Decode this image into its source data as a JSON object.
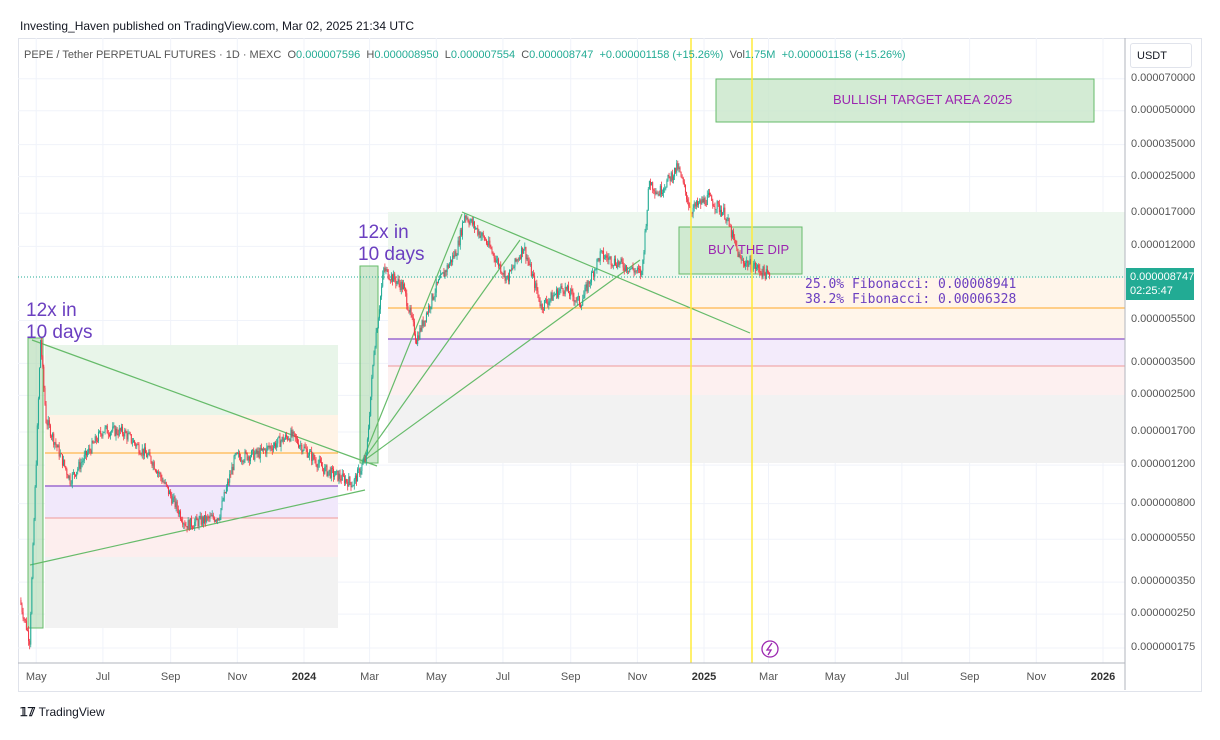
{
  "header": {
    "published": "Investing_Haven published on TradingView.com, Mar 02, 2025 21:34 UTC"
  },
  "legend": {
    "symbol": "PEPE / Tether PERPETUAL FUTURES · 1D · MEXC",
    "o_label": "O",
    "o": "0.000007596",
    "h_label": "H",
    "h": "0.000008950",
    "l_label": "L",
    "l": "0.000007554",
    "c_label": "C",
    "c": "0.000008747",
    "change": "+0.000001158 (+15.26%)",
    "vol_label": "Vol",
    "vol": "1.75M",
    "vol_change": "+0.000001158 (+15.26%)"
  },
  "currency": "USDT",
  "price_label": {
    "price": "0.000008747",
    "countdown": "02:25:47"
  },
  "annotations": {
    "first_rally": [
      "12x in",
      "10 days"
    ],
    "second_rally": [
      "12x in",
      "10 days"
    ],
    "target": "BULLISH TARGET AREA 2025",
    "dip": "BUY THE DIP",
    "fib25": "25.0% Fibonacci: 0.00008941",
    "fib382": "38.2% Fibonacci: 0.00006328"
  },
  "footer": {
    "logo": "TradingView"
  },
  "colors": {
    "up": "#22ab94",
    "down": "#f23645",
    "trend": "#66bb6a",
    "vline": "#ffeb3b",
    "accent": "#6b3fc0"
  },
  "chart_data": {
    "type": "candlestick",
    "title": "",
    "yscale": "log",
    "ylim": [
      1.65e-07,
      7.5e-05
    ],
    "xlim": [
      "2023-04-10",
      "2026-02-10"
    ],
    "grid": true,
    "y_ticks": [
      "0.000070000",
      "0.000050000",
      "0.000035000",
      "0.000025000",
      "0.000017000",
      "0.000012000",
      "0.000005500",
      "0.000003500",
      "0.000002500",
      "0.000001700",
      "0.000001200",
      "0.000000800",
      "0.000000550",
      "0.000000350",
      "0.000000250",
      "0.000000175"
    ],
    "y_tick_values": [
      7e-05,
      5e-05,
      3.5e-05,
      2.5e-05,
      1.7e-05,
      1.2e-05,
      5.5e-06,
      3.5e-06,
      2.5e-06,
      1.7e-06,
      1.2e-06,
      8e-07,
      5.5e-07,
      3.5e-07,
      2.5e-07,
      1.75e-07
    ],
    "x_ticks": [
      "May",
      "Jul",
      "Sep",
      "Nov",
      "2024",
      "Mar",
      "May",
      "Jul",
      "Sep",
      "Nov",
      "2025",
      "Mar",
      "May",
      "Jul",
      "Sep",
      "Nov",
      "2026"
    ],
    "x_tick_dates": [
      "2023-05-01",
      "2023-07-01",
      "2023-09-01",
      "2023-11-01",
      "2024-01-01",
      "2024-03-01",
      "2024-05-01",
      "2024-07-01",
      "2024-09-01",
      "2024-11-01",
      "2025-01-01",
      "2025-03-01",
      "2025-05-01",
      "2025-07-01",
      "2025-09-01",
      "2025-11-01",
      "2026-01-01"
    ],
    "price_path": [
      [
        "2023-04-16",
        2.9e-07
      ],
      [
        "2023-04-25",
        1.9e-07
      ],
      [
        "2023-05-05",
        4.5e-06
      ],
      [
        "2023-05-10",
        1.93e-06
      ],
      [
        "2023-06-01",
        1.03e-06
      ],
      [
        "2023-07-01",
        1.74e-06
      ],
      [
        "2023-07-20",
        1.7e-06
      ],
      [
        "2023-08-15",
        1.26e-06
      ],
      [
        "2023-09-15",
        6.4e-07
      ],
      [
        "2023-10-15",
        7e-07
      ],
      [
        "2023-10-30",
        1.3e-06
      ],
      [
        "2023-11-20",
        1.35e-06
      ],
      [
        "2023-12-20",
        1.65e-06
      ],
      [
        "2024-01-20",
        1.14e-06
      ],
      [
        "2024-02-15",
        9.9e-07
      ],
      [
        "2024-02-27",
        1.3e-06
      ],
      [
        "2024-03-05",
        4e-06
      ],
      [
        "2024-03-14",
        9.4e-06
      ],
      [
        "2024-04-01",
        7.8e-06
      ],
      [
        "2024-04-13",
        4.5e-06
      ],
      [
        "2024-05-01",
        7.8e-06
      ],
      [
        "2024-05-20",
        1.16e-05
      ],
      [
        "2024-05-27",
        1.68e-05
      ],
      [
        "2024-06-15",
        1.28e-05
      ],
      [
        "2024-07-05",
        8.5e-06
      ],
      [
        "2024-07-20",
        1.2e-05
      ],
      [
        "2024-08-05",
        6.4e-06
      ],
      [
        "2024-08-25",
        7.8e-06
      ],
      [
        "2024-09-10",
        6.6e-06
      ],
      [
        "2024-09-28",
        1.1e-05
      ],
      [
        "2024-10-20",
        9.8e-06
      ],
      [
        "2024-11-05",
        9e-06
      ],
      [
        "2024-11-12",
        2.4e-05
      ],
      [
        "2024-11-20",
        2.1e-05
      ],
      [
        "2024-12-08",
        2.76e-05
      ],
      [
        "2024-12-20",
        1.76e-05
      ],
      [
        "2025-01-05",
        2e-05
      ],
      [
        "2025-01-20",
        1.7e-05
      ],
      [
        "2025-02-03",
        1.04e-05
      ],
      [
        "2025-02-15",
        9.8e-06
      ],
      [
        "2025-03-02",
        8.747e-06
      ]
    ],
    "last_price": 8.747e-06
  }
}
